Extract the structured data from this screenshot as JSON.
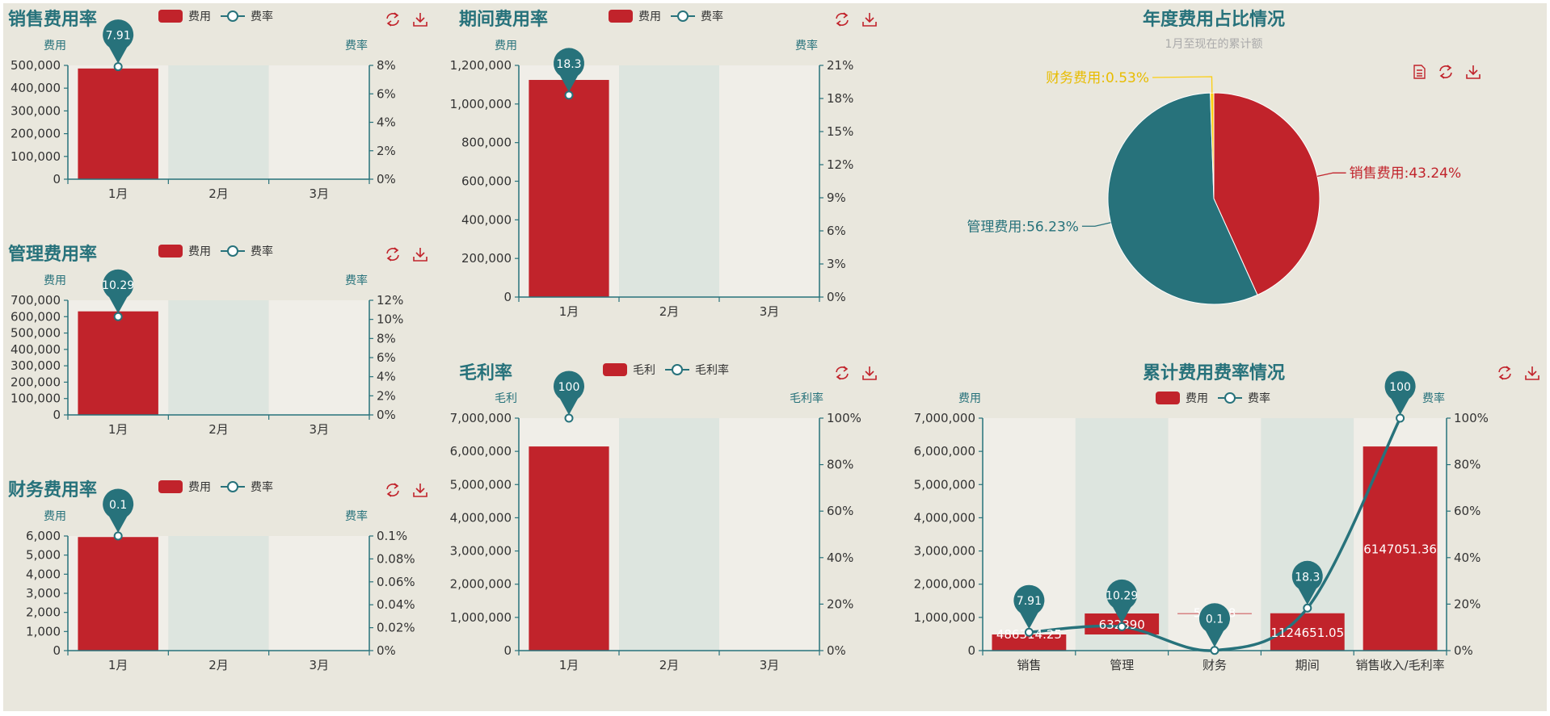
{
  "colors": {
    "page": "#e9e7dd",
    "red": "#c1232b",
    "teal": "#27727b",
    "yellow": "#fcce10",
    "bandA": "#f0eee8",
    "bandB": "#dde5df",
    "tick": "#333333"
  },
  "icons": [
    "refresh-icon",
    "download-icon",
    "data-view-icon"
  ],
  "chart_data": [
    {
      "id": "sales",
      "type": "bar",
      "title": "销售费用率",
      "legend": [
        "费用",
        "费率"
      ],
      "categories": [
        "1月",
        "2月",
        "3月"
      ],
      "y_left": {
        "name": "费用",
        "ticks": [
          "0",
          "100,000",
          "200,000",
          "300,000",
          "400,000",
          "500,000"
        ],
        "max": 500000
      },
      "y_right": {
        "name": "费率",
        "ticks": [
          "0%",
          "2%",
          "4%",
          "6%",
          "8%"
        ],
        "max": 8
      },
      "series": [
        {
          "name": "费用",
          "values": [
            486314.25,
            0,
            0
          ]
        },
        {
          "name": "费率",
          "values": [
            7.91,
            null,
            null
          ]
        }
      ],
      "pin_labels": [
        "7.91"
      ]
    },
    {
      "id": "admin",
      "type": "bar",
      "title": "管理费用率",
      "legend": [
        "费用",
        "费率"
      ],
      "categories": [
        "1月",
        "2月",
        "3月"
      ],
      "y_left": {
        "name": "费用",
        "ticks": [
          "0",
          "100,000",
          "200,000",
          "300,000",
          "400,000",
          "500,000",
          "600,000",
          "700,000"
        ],
        "max": 700000
      },
      "y_right": {
        "name": "费率",
        "ticks": [
          "0%",
          "2%",
          "4%",
          "6%",
          "8%",
          "10%",
          "12%"
        ],
        "max": 12
      },
      "series": [
        {
          "name": "费用",
          "values": [
            632390,
            0,
            0
          ]
        },
        {
          "name": "费率",
          "values": [
            10.29,
            null,
            null
          ]
        }
      ],
      "pin_labels": [
        "10.29"
      ]
    },
    {
      "id": "finance",
      "type": "bar",
      "title": "财务费用率",
      "legend": [
        "费用",
        "费率"
      ],
      "categories": [
        "1月",
        "2月",
        "3月"
      ],
      "y_left": {
        "name": "费用",
        "ticks": [
          "0",
          "1,000",
          "2,000",
          "3,000",
          "4,000",
          "5,000",
          "6,000"
        ],
        "max": 6000
      },
      "y_right": {
        "name": "费率",
        "ticks": [
          "0%",
          "0.02%",
          "0.04%",
          "0.06%",
          "0.08%",
          "0.1%"
        ],
        "max": 0.1
      },
      "series": [
        {
          "name": "费用",
          "values": [
            5946.8,
            0,
            0
          ]
        },
        {
          "name": "费率",
          "values": [
            0.1,
            null,
            null
          ]
        }
      ],
      "pin_labels": [
        "0.1"
      ]
    },
    {
      "id": "period",
      "type": "bar",
      "title": "期间费用率",
      "legend": [
        "费用",
        "费率"
      ],
      "categories": [
        "1月",
        "2月",
        "3月"
      ],
      "y_left": {
        "name": "费用",
        "ticks": [
          "0",
          "200,000",
          "400,000",
          "600,000",
          "800,000",
          "1,000,000",
          "1,200,000"
        ],
        "max": 1200000
      },
      "y_right": {
        "name": "费率",
        "ticks": [
          "0%",
          "3%",
          "6%",
          "9%",
          "12%",
          "15%",
          "18%",
          "21%"
        ],
        "max": 21
      },
      "series": [
        {
          "name": "费用",
          "values": [
            1124651.05,
            0,
            0
          ]
        },
        {
          "name": "费率",
          "values": [
            18.3,
            null,
            null
          ]
        }
      ],
      "pin_labels": [
        "18.3"
      ]
    },
    {
      "id": "gross",
      "type": "bar",
      "title": "毛利率",
      "legend": [
        "毛利",
        "毛利率"
      ],
      "categories": [
        "1月",
        "2月",
        "3月"
      ],
      "y_left": {
        "name": "毛利",
        "ticks": [
          "0",
          "1,000,000",
          "2,000,000",
          "3,000,000",
          "4,000,000",
          "5,000,000",
          "6,000,000",
          "7,000,000"
        ],
        "max": 7000000
      },
      "y_right": {
        "name": "毛利率",
        "ticks": [
          "0%",
          "20%",
          "40%",
          "60%",
          "80%",
          "100%"
        ],
        "max": 100
      },
      "series": [
        {
          "name": "毛利",
          "values": [
            6147051.36,
            0,
            0
          ]
        },
        {
          "name": "毛利率",
          "values": [
            100,
            null,
            null
          ]
        }
      ],
      "pin_labels": [
        "100"
      ]
    },
    {
      "id": "pie",
      "type": "pie",
      "title": "年度费用占比情况",
      "subtitle": "1月至现在的累计额",
      "slices": [
        {
          "label": "销售费用:43.24%",
          "value": 43.24,
          "color": "#c1232b"
        },
        {
          "label": "管理费用:56.23%",
          "value": 56.23,
          "color": "#27727b"
        },
        {
          "label": "财务费用:0.53%",
          "value": 0.53,
          "color": "#fcce10"
        }
      ]
    },
    {
      "id": "cumulative",
      "type": "bar",
      "title": "累计费用费率情况",
      "legend": [
        "费用",
        "费率"
      ],
      "categories": [
        "销售",
        "管理",
        "财务",
        "期间",
        "销售收入/毛利率"
      ],
      "y_left": {
        "name": "费用",
        "ticks": [
          "0",
          "1,000,000",
          "2,000,000",
          "3,000,000",
          "4,000,000",
          "5,000,000",
          "6,000,000",
          "7,000,000"
        ],
        "max": 7000000
      },
      "y_right": {
        "name": "费率",
        "ticks": [
          "0%",
          "20%",
          "40%",
          "60%",
          "80%",
          "100%"
        ],
        "max": 100
      },
      "series": [
        {
          "name": "费用",
          "values": [
            486314.25,
            632390,
            5946.8,
            1124651.05,
            6147051.36
          ],
          "bases": [
            0,
            486314.25,
            1118704.25,
            0,
            0
          ]
        },
        {
          "name": "费率",
          "values": [
            7.91,
            10.29,
            0.1,
            18.3,
            100
          ]
        }
      ],
      "bar_labels": [
        "486314.25",
        "632390",
        "5946.8",
        "1124651.05",
        "6147051.36"
      ],
      "pin_labels": [
        "7.91",
        "10.29",
        "0.1",
        "18.3",
        "100"
      ]
    }
  ]
}
